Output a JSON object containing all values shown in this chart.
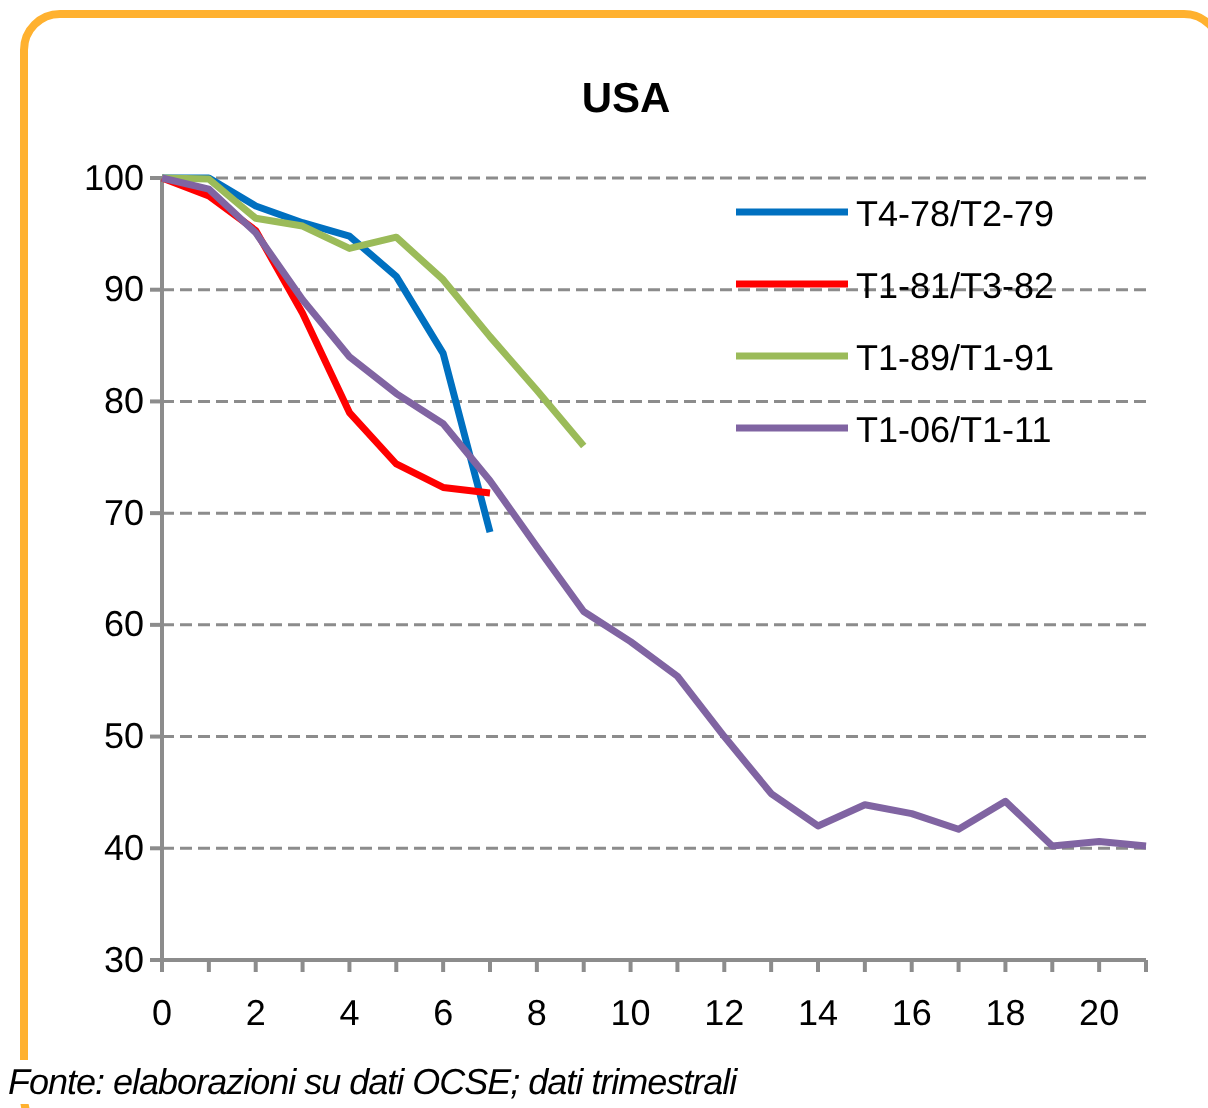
{
  "chart_data": {
    "type": "line",
    "title": "USA",
    "x": [
      0,
      1,
      2,
      3,
      4,
      5,
      6,
      7,
      8,
      9,
      10,
      11,
      12,
      13,
      14,
      15,
      16,
      17,
      18,
      19,
      20,
      21
    ],
    "series": [
      {
        "name": "T4-78/T2-79",
        "color": "#0070c0",
        "values": [
          100,
          100,
          97.5,
          96,
          94.8,
          91.2,
          84.3,
          68.3,
          null,
          null,
          null,
          null,
          null,
          null,
          null,
          null,
          null,
          null,
          null,
          null,
          null,
          null
        ]
      },
      {
        "name": "T1-81/T3-82",
        "color": "#ff0000",
        "values": [
          100,
          98.4,
          95.3,
          87.9,
          79,
          74.4,
          72.3,
          71.8,
          null,
          null,
          null,
          null,
          null,
          null,
          null,
          null,
          null,
          null,
          null,
          null,
          null,
          null
        ]
      },
      {
        "name": "T1-89/T1-91",
        "color": "#9bbb59",
        "values": [
          100,
          99.9,
          96.4,
          95.7,
          93.7,
          94.7,
          90.9,
          85.8,
          81,
          76,
          null,
          null,
          null,
          null,
          null,
          null,
          null,
          null,
          null,
          null,
          null,
          null
        ]
      },
      {
        "name": "T1-06/T1-11",
        "color": "#8064a2",
        "values": [
          100,
          99,
          95.1,
          89.1,
          84,
          80.7,
          78,
          72.9,
          67,
          61.2,
          58.5,
          55.4,
          50,
          44.9,
          42,
          43.9,
          43.1,
          41.7,
          44.2,
          40.2,
          40.6,
          40.2
        ]
      }
    ],
    "xlim": [
      0,
      21
    ],
    "xticks": [
      0,
      {
        "value": 1,
        "label": null
      },
      2,
      {
        "value": 3,
        "label": null
      },
      4,
      {
        "value": 5,
        "label": null
      },
      6,
      {
        "value": 7,
        "label": null
      },
      8,
      {
        "value": 9,
        "label": null
      },
      10,
      {
        "value": 11,
        "label": null
      },
      12,
      {
        "value": 13,
        "label": null
      },
      14,
      {
        "value": 15,
        "label": null
      },
      16,
      {
        "value": 17,
        "label": null
      },
      18,
      {
        "value": 19,
        "label": null
      },
      20,
      {
        "value": 21,
        "label": null
      }
    ],
    "ylim": [
      30,
      100
    ],
    "yticks": [
      30,
      40,
      50,
      60,
      70,
      80,
      90,
      100
    ],
    "grid": "y",
    "legend": "top right",
    "marker": "none",
    "line_style": "solid",
    "annotations": [
      "Fonte: elaborazioni su dati OCSE; dati trimestrali"
    ]
  }
}
